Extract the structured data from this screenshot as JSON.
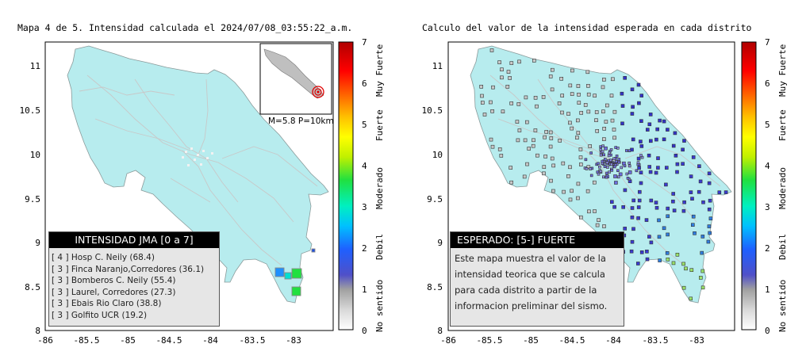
{
  "left_panel": {
    "title": "Mapa 4 de 5. Intensidad calculada el 2024/07/08_03:55:22_a.m.",
    "inset_caption": "M=5.8 P=10km",
    "x_ticks": [
      "-86",
      "-85.5",
      "-85",
      "-84.5",
      "-84",
      "-83.5",
      "-83"
    ],
    "y_ticks": [
      "11",
      "10.5",
      "10",
      "9.5",
      "9",
      "8.5",
      "8"
    ],
    "jma_box": {
      "header": "INTENSIDAD JMA [0 a 7]",
      "rows": [
        "[ 4 ]  Hosp C. Neily (68.4)",
        "[ 3 ]  Finca Naranjo,Corredores (36.1)",
        "[ 3 ]  Bomberos C. Neily (55.4)",
        "[ 3 ]  Laurel, Corredores (27.3)",
        "[ 3 ]  Ebais Rio Claro (38.8)",
        "[ 3 ]  Golfito UCR (19.2)"
      ]
    }
  },
  "right_panel": {
    "title": "Calculo del valor de la intensidad esperada en cada distrito",
    "x_ticks": [
      "-86",
      "-85.5",
      "-85",
      "-84.5",
      "-84",
      "-83.5",
      "-83"
    ],
    "y_ticks": [
      "11",
      "10.5",
      "10",
      "9.5",
      "9",
      "8.5",
      "8"
    ],
    "expected_box": {
      "header": "ESPERADO: [5-] FUERTE",
      "text_lines": [
        "Este mapa muestra el valor de la",
        "intensidad teorica que se calcula",
        "para cada distrito a partir de la",
        "informacion preliminar del sismo."
      ]
    }
  },
  "colorbar": {
    "ticks": [
      "0",
      "1",
      "2",
      "3",
      "4",
      "5",
      "6",
      "7"
    ],
    "categories": [
      "No sentido",
      "Debil",
      "Moderado",
      "Fuerte",
      "Muy Fuerte"
    ]
  }
}
